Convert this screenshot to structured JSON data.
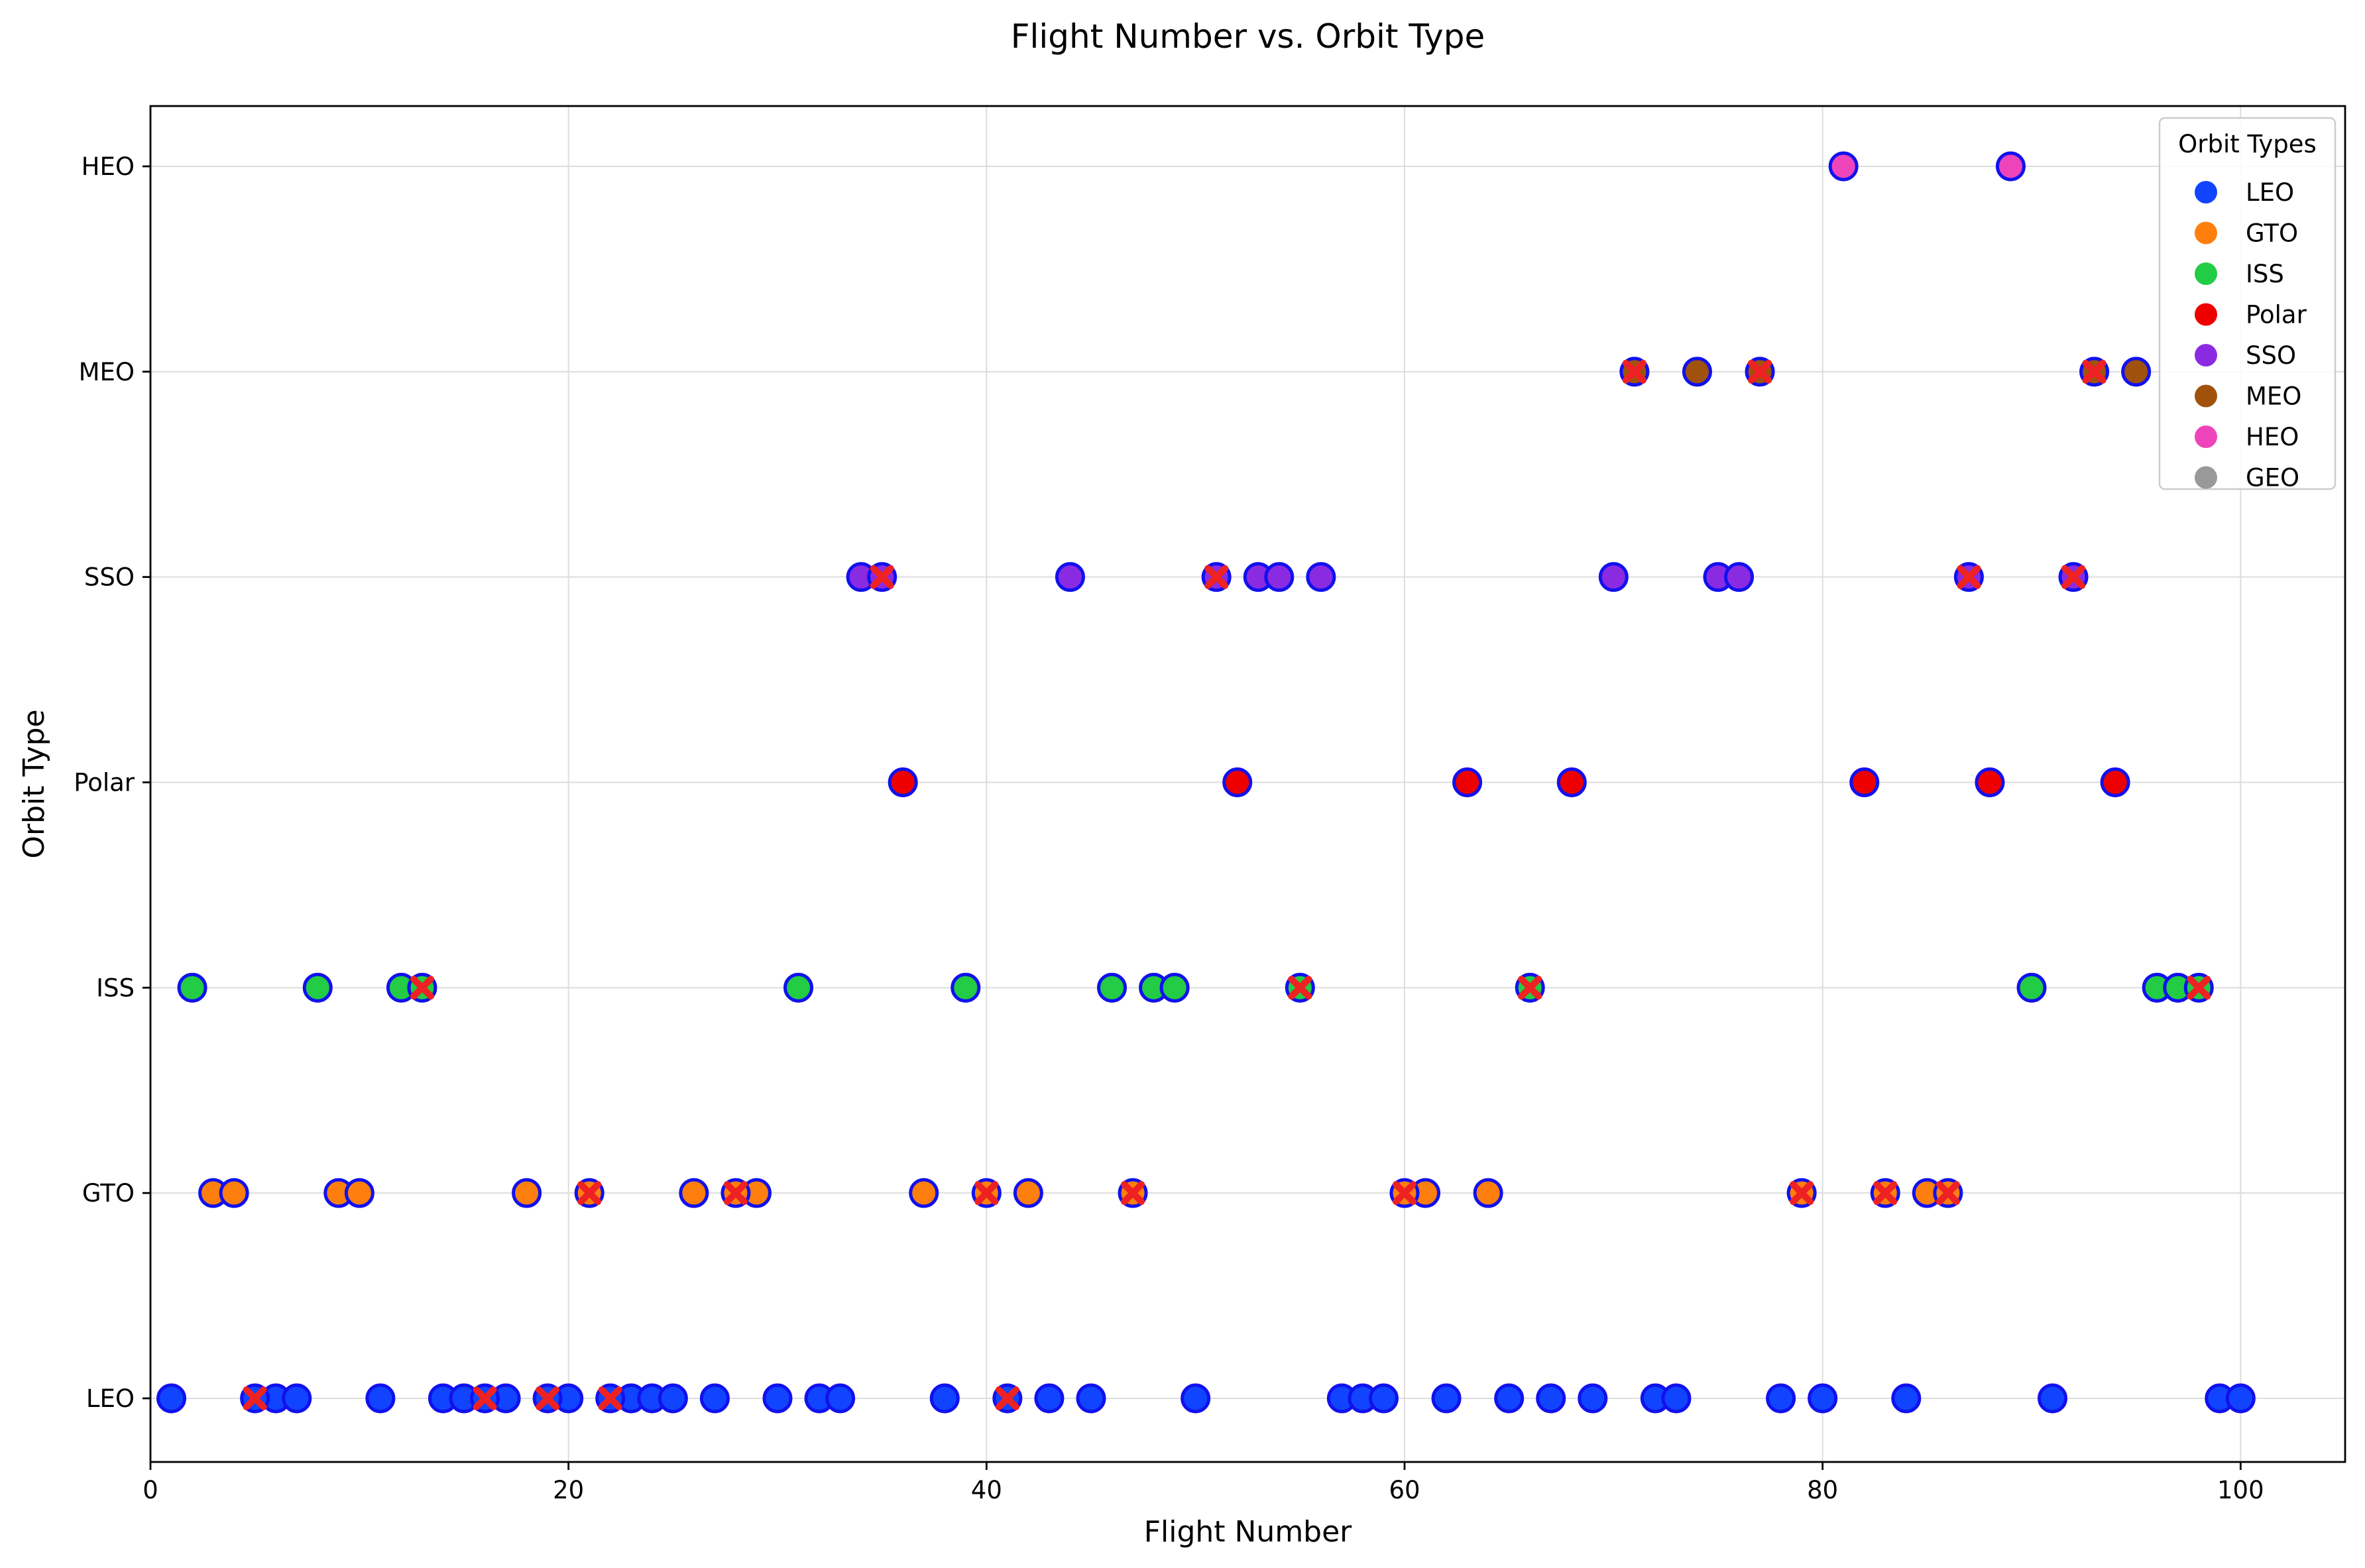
{
  "chart_data": {
    "type": "scatter",
    "title": "Flight Number vs. Orbit Type",
    "xlabel": "Flight Number",
    "ylabel": "Orbit Type",
    "xlim": [
      0,
      105
    ],
    "x_ticks": [
      0,
      20,
      40,
      60,
      80,
      100
    ],
    "y_categories": [
      "LEO",
      "GTO",
      "ISS",
      "Polar",
      "SSO",
      "MEO",
      "HEO"
    ],
    "grid": true,
    "legend": {
      "title": "Orbit Types",
      "placement": "top-right",
      "entries": [
        {
          "label": "LEO",
          "color": "#1144ff"
        },
        {
          "label": "GTO",
          "color": "#ff7f0e"
        },
        {
          "label": "ISS",
          "color": "#22cc44"
        },
        {
          "label": "Polar",
          "color": "#ee0000"
        },
        {
          "label": "SSO",
          "color": "#8a2be2"
        },
        {
          "label": "MEO",
          "color": "#a0520d"
        },
        {
          "label": "HEO",
          "color": "#ee44bb"
        },
        {
          "label": "GEO",
          "color": "#999999"
        }
      ]
    },
    "marker_edge_color": "#1111ee",
    "failure_marker_color": "#ee2222",
    "series": [
      {
        "name": "LEO",
        "success": [
          1,
          6,
          7,
          11,
          14,
          15,
          17,
          20,
          23,
          24,
          25,
          27,
          30,
          32,
          33,
          38,
          43,
          45,
          50,
          57,
          58,
          59,
          62,
          65,
          67,
          69,
          72,
          73,
          78,
          80,
          84,
          91,
          99,
          100
        ],
        "failure": [
          5,
          16,
          19,
          22,
          41
        ]
      },
      {
        "name": "GTO",
        "success": [
          3,
          4,
          9,
          10,
          18,
          26,
          29,
          37,
          42,
          61,
          64,
          85
        ],
        "failure": [
          21,
          28,
          40,
          47,
          60,
          79,
          83,
          86
        ]
      },
      {
        "name": "ISS",
        "success": [
          2,
          8,
          12,
          31,
          39,
          46,
          48,
          49,
          90,
          96,
          97
        ],
        "failure": [
          13,
          55,
          66,
          98
        ]
      },
      {
        "name": "Polar",
        "success": [
          36,
          52,
          63,
          68,
          82,
          88,
          94
        ],
        "failure": []
      },
      {
        "name": "SSO",
        "success": [
          34,
          44,
          53,
          54,
          56,
          70,
          75,
          76
        ],
        "failure": [
          35,
          51,
          87,
          92
        ]
      },
      {
        "name": "MEO",
        "success": [
          74,
          95
        ],
        "failure": [
          71,
          77,
          93
        ]
      },
      {
        "name": "HEO",
        "success": [
          81,
          89
        ],
        "failure": []
      }
    ]
  }
}
